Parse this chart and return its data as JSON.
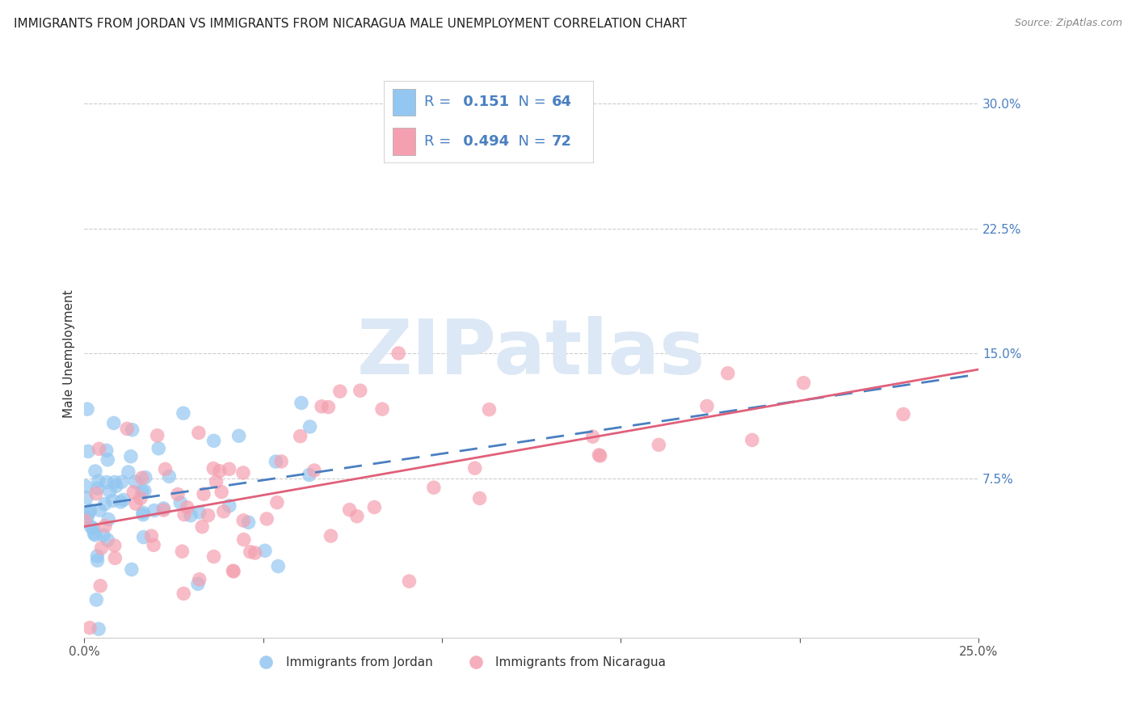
{
  "title": "IMMIGRANTS FROM JORDAN VS IMMIGRANTS FROM NICARAGUA MALE UNEMPLOYMENT CORRELATION CHART",
  "source": "Source: ZipAtlas.com",
  "ylabel": "Male Unemployment",
  "xlim": [
    0.0,
    0.25
  ],
  "ylim": [
    -0.02,
    0.32
  ],
  "yticks": [
    0.075,
    0.15,
    0.225,
    0.3
  ],
  "ytick_labels": [
    "7.5%",
    "15.0%",
    "22.5%",
    "30.0%"
  ],
  "xticks": [
    0.0,
    0.05,
    0.1,
    0.15,
    0.2,
    0.25
  ],
  "xtick_labels": [
    "0.0%",
    "",
    "",
    "",
    "",
    "25.0%"
  ],
  "jordan_R": 0.151,
  "jordan_N": 64,
  "nicaragua_R": 0.494,
  "nicaragua_N": 72,
  "jordan_color": "#93c6f0",
  "nicaragua_color": "#f4a0b0",
  "jordan_line_color": "#4a7fc1",
  "nicaragua_line_color": "#e0607a",
  "background_color": "#ffffff",
  "grid_color": "#cccccc",
  "watermark": "ZIPatlas",
  "watermark_color": "#dce8f5",
  "title_fontsize": 11,
  "axis_label_fontsize": 11,
  "tick_fontsize": 11,
  "legend_fontsize": 13,
  "legend_value_color": "#4a7fc1",
  "jordan_seed": 42,
  "nicaragua_seed": 7
}
